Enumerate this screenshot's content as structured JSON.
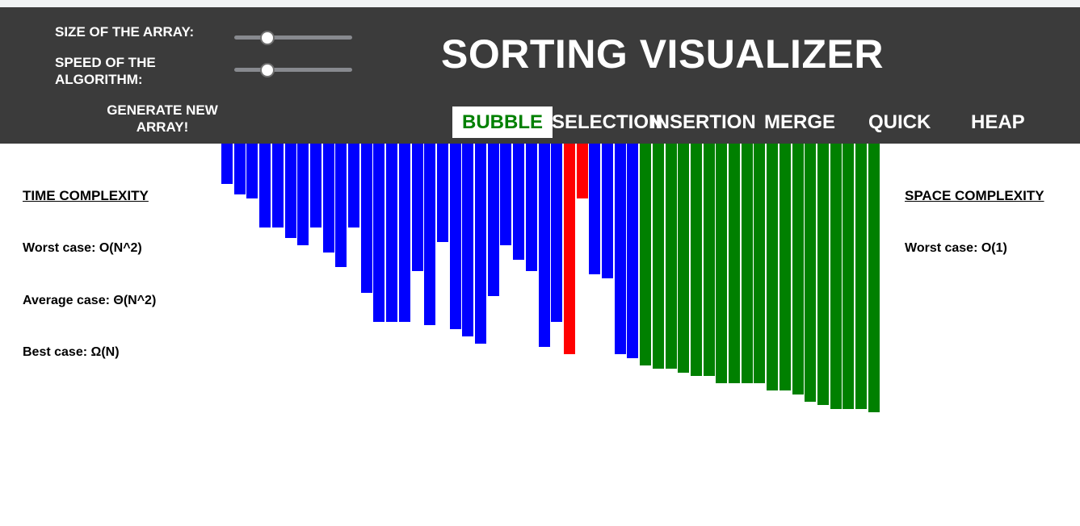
{
  "header": {
    "title": "SORTING VISUALIZER",
    "size_label": "SIZE OF THE ARRAY:",
    "speed_label_line1": "SPEED OF THE",
    "speed_label_line2": "ALGORITHM:",
    "size_slider_value": 0.28,
    "speed_slider_value": 0.28,
    "generate_line1": "GENERATE NEW",
    "generate_line2": "ARRAY!",
    "algorithms": [
      "BUBBLE",
      "SELECTION",
      "INSERTION",
      "MERGE",
      "QUICK",
      "HEAP"
    ],
    "active_algorithm": "BUBBLE",
    "header_color": "#3b3b3b",
    "active_text_color": "#008000"
  },
  "time_complexity": {
    "heading": "TIME COMPLEXITY",
    "worst_label": "Worst case:",
    "worst_value": "O(N^2)",
    "average_label": "Average case:",
    "average_value": "Θ(N^2)",
    "best_label": "Best case:",
    "best_value": "Ω(N)"
  },
  "space_complexity": {
    "heading": "SPACE COMPLEXITY",
    "worst_label": "Worst case:",
    "worst_value": "O(1)"
  },
  "bar_colors": {
    "unsorted": "#0000ff",
    "compare": "#ff0000",
    "sorted": "#008000"
  },
  "array": {
    "values": [
      50,
      63,
      68,
      104,
      104,
      117,
      126,
      104,
      135,
      153,
      104,
      185,
      221,
      221,
      221,
      158,
      225,
      122,
      230,
      239,
      248,
      189,
      126,
      144,
      158,
      252,
      221,
      261,
      68,
      162,
      167,
      261,
      266,
      275,
      279,
      279,
      284,
      288,
      288,
      297,
      297,
      297,
      297,
      306,
      306,
      311,
      320,
      324,
      329,
      329,
      329,
      333
    ],
    "states": [
      "u",
      "u",
      "u",
      "u",
      "u",
      "u",
      "u",
      "u",
      "u",
      "u",
      "u",
      "u",
      "u",
      "u",
      "u",
      "u",
      "u",
      "u",
      "u",
      "u",
      "u",
      "u",
      "u",
      "u",
      "u",
      "u",
      "u",
      "c",
      "c",
      "u",
      "u",
      "u",
      "u",
      "s",
      "s",
      "s",
      "s",
      "s",
      "s",
      "s",
      "s",
      "s",
      "s",
      "s",
      "s",
      "s",
      "s",
      "s",
      "s",
      "s",
      "s",
      "s"
    ]
  }
}
